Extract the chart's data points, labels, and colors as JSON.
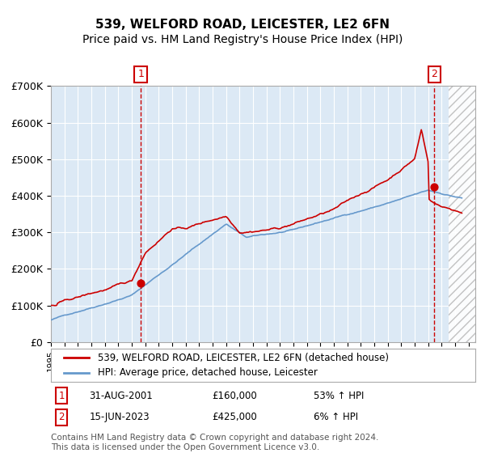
{
  "title": "539, WELFORD ROAD, LEICESTER, LE2 6FN",
  "subtitle": "Price paid vs. HM Land Registry's House Price Index (HPI)",
  "ylim": [
    0,
    700000
  ],
  "yticks": [
    0,
    100000,
    200000,
    300000,
    400000,
    500000,
    600000,
    700000
  ],
  "ytick_labels": [
    "£0",
    "£100K",
    "£200K",
    "£300K",
    "£400K",
    "£500K",
    "£600K",
    "£700K"
  ],
  "xlim_start": 1995.0,
  "xlim_end": 2026.5,
  "future_start": 2024.5,
  "background_color": "#ffffff",
  "plot_bg_color": "#dce9f5",
  "grid_color": "#ffffff",
  "hpi_line_color": "#6699cc",
  "price_line_color": "#cc0000",
  "point_color": "#cc0000",
  "vline_color": "#cc0000",
  "sale1_year": 2001.667,
  "sale1_price": 160000,
  "sale1_label": "1",
  "sale2_year": 2023.458,
  "sale2_price": 425000,
  "sale2_label": "2",
  "legend_line1": "539, WELFORD ROAD, LEICESTER, LE2 6FN (detached house)",
  "legend_line2": "HPI: Average price, detached house, Leicester",
  "annotation1_date": "31-AUG-2001",
  "annotation1_price": "£160,000",
  "annotation1_hpi": "53% ↑ HPI",
  "annotation2_date": "15-JUN-2023",
  "annotation2_price": "£425,000",
  "annotation2_hpi": "6% ↑ HPI",
  "footer": "Contains HM Land Registry data © Crown copyright and database right 2024.\nThis data is licensed under the Open Government Licence v3.0.",
  "title_fontsize": 11,
  "subtitle_fontsize": 10,
  "hatch_color": "#bbbbbb"
}
